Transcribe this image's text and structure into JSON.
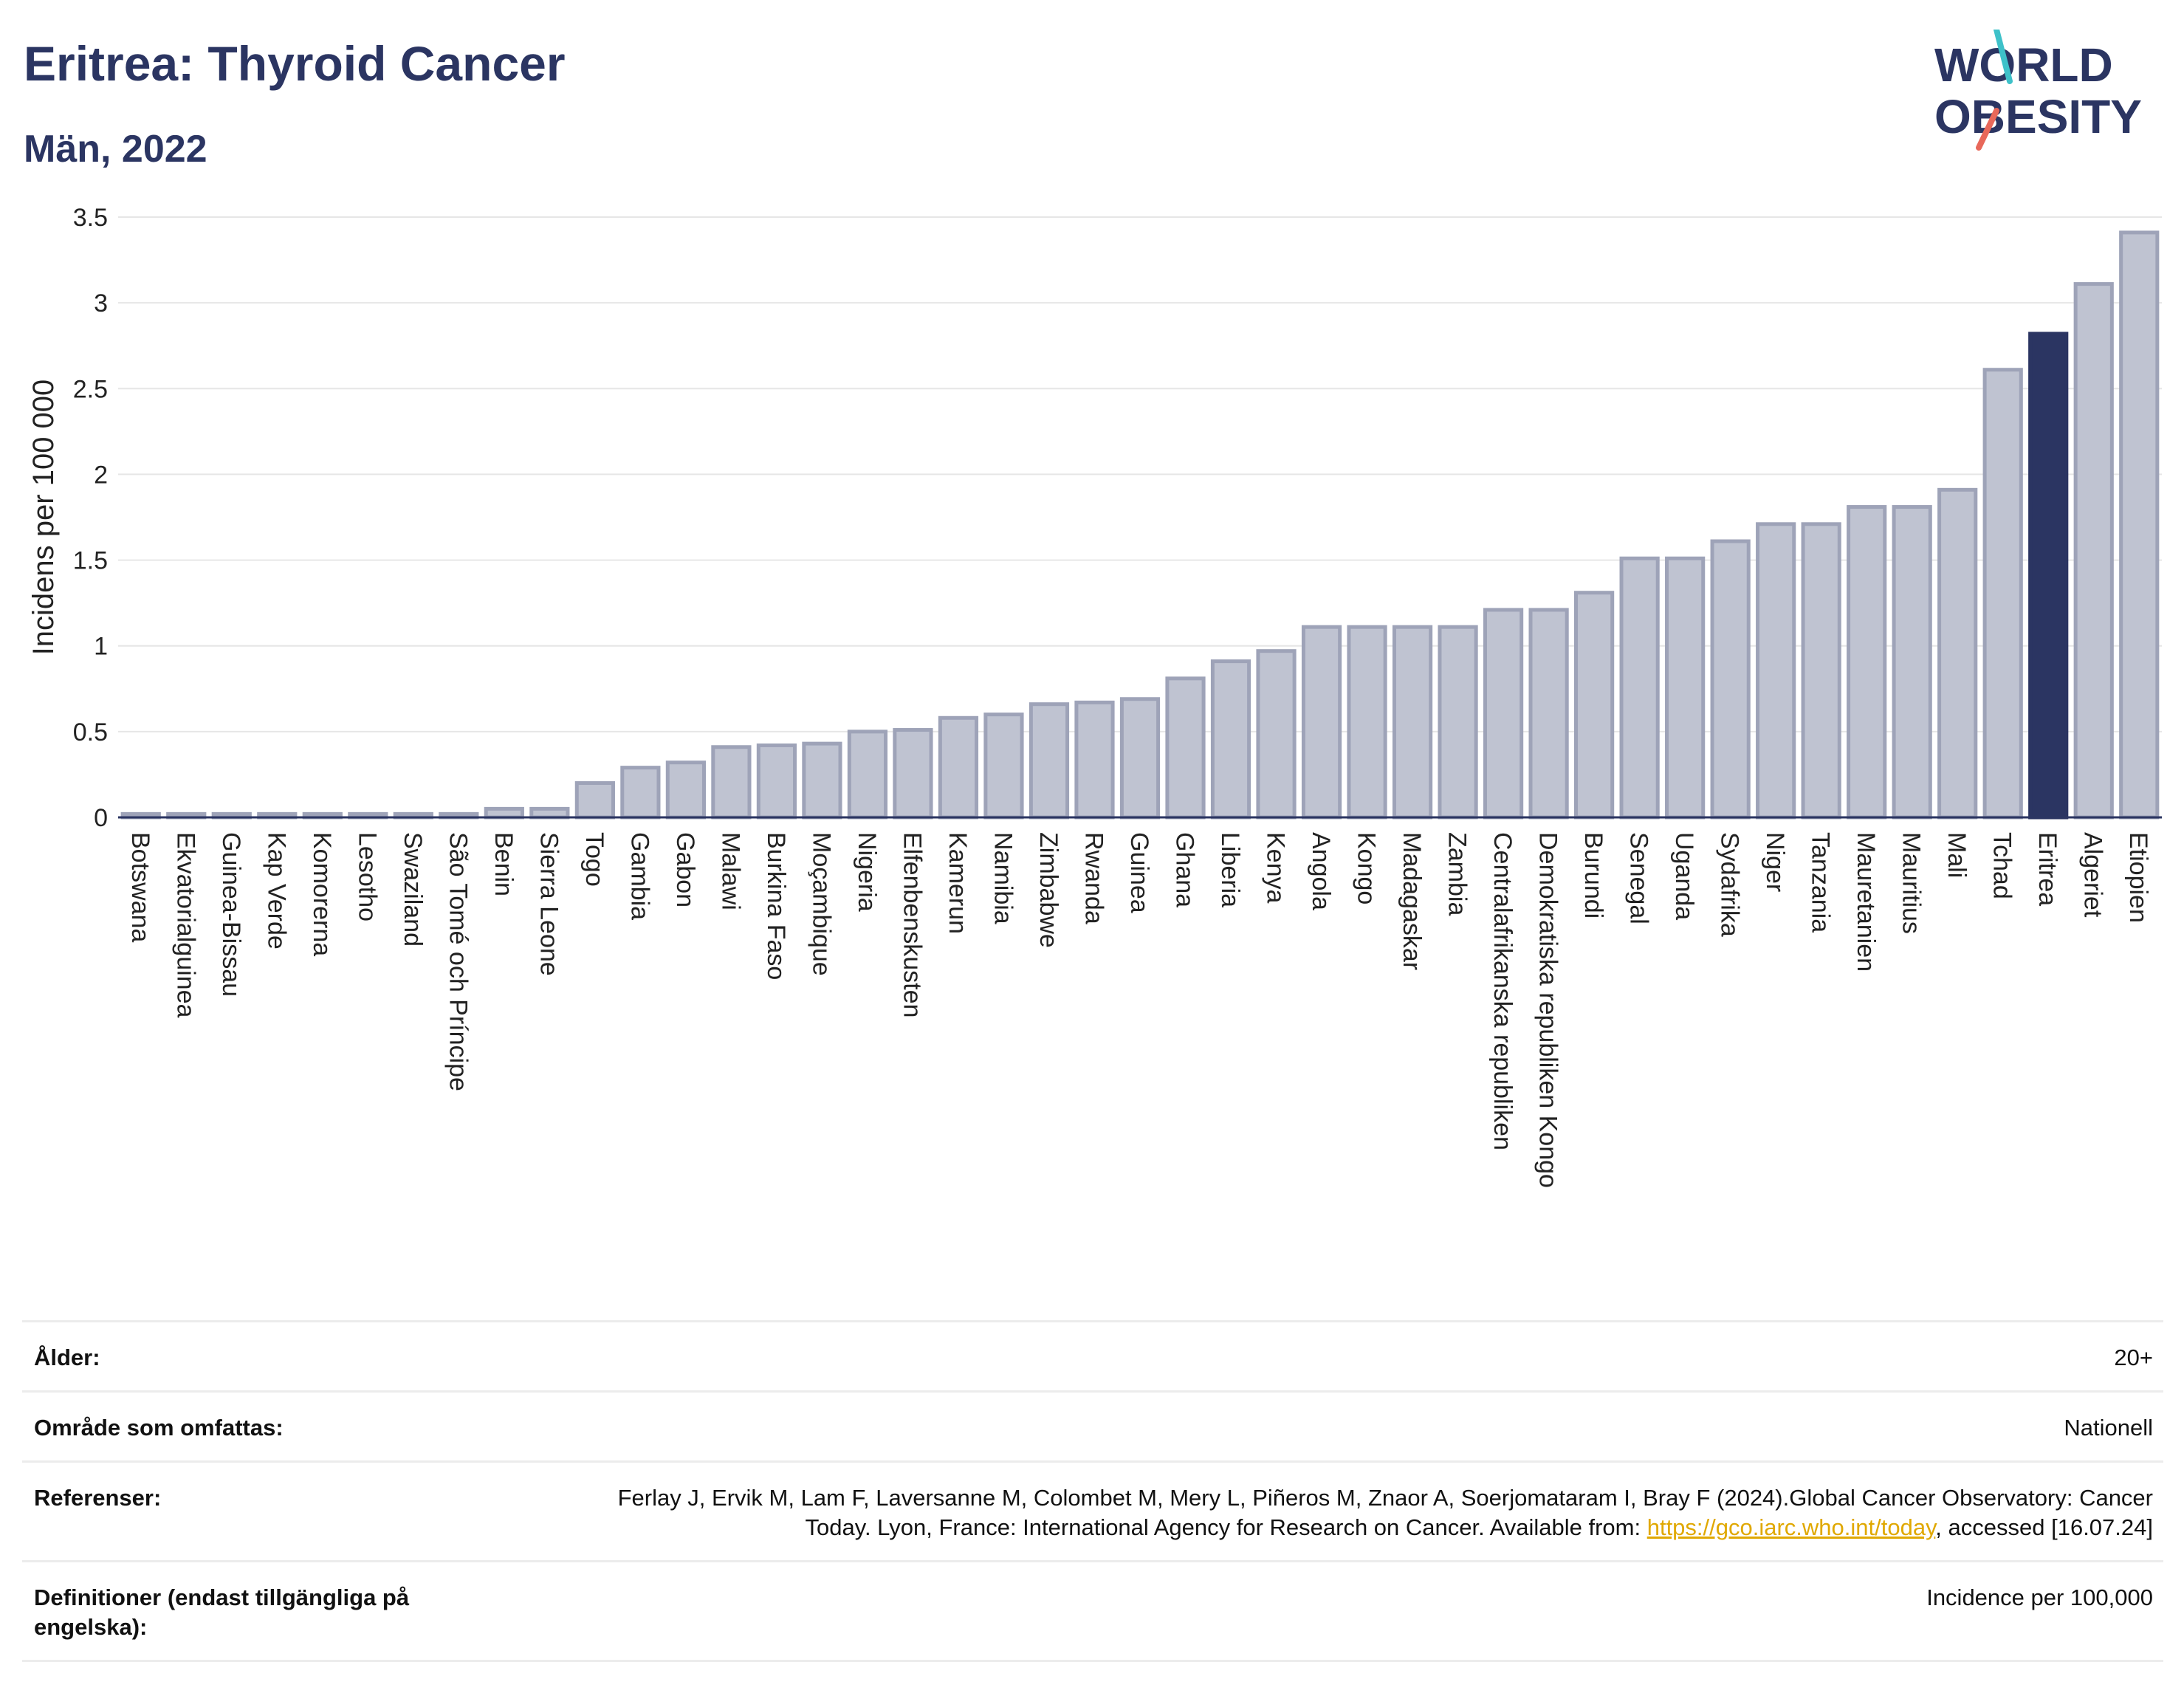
{
  "header": {
    "title": "Eritrea: Thyroid Cancer",
    "subtitle": "Män, 2022"
  },
  "logo": {
    "line1": "WORLD",
    "line2": "OBESITY",
    "slash_color_top": "#3ec1c9",
    "slash_color_bottom": "#e8685a"
  },
  "chart_data": {
    "type": "bar",
    "ylabel": "Incidens per 100 000",
    "ylim": [
      0,
      3.5
    ],
    "yticks": [
      0,
      0.5,
      1,
      1.5,
      2,
      2.5,
      3,
      3.5
    ],
    "ytick_labels": [
      "0",
      "0.5",
      "1",
      "1.5",
      "2",
      "2.5",
      "3",
      "3.5"
    ],
    "grid": true,
    "highlight": "Eritrea",
    "colors": {
      "bar": "#bfc3d1",
      "bar_edge": "#9ea3b8",
      "highlight": "#2b3562"
    },
    "categories": [
      "Botswana",
      "Ekvatorialguinea",
      "Guinea-Bissau",
      "Kap Verde",
      "Komorerna",
      "Lesotho",
      "Swaziland",
      "São Tomé och Príncipe",
      "Benin",
      "Sierra Leone",
      "Togo",
      "Gambia",
      "Gabon",
      "Malawi",
      "Burkina Faso",
      "Moçambique",
      "Nigeria",
      "Elfenbenskusten",
      "Kamerun",
      "Namibia",
      "Zimbabwe",
      "Rwanda",
      "Guinea",
      "Ghana",
      "Liberia",
      "Kenya",
      "Angola",
      "Kongo",
      "Madagaskar",
      "Zambia",
      "Centralafrikanska republiken",
      "Demokratiska republiken Kongo",
      "Burundi",
      "Senegal",
      "Uganda",
      "Sydafrika",
      "Niger",
      "Tanzania",
      "Mauretanien",
      "Mauritius",
      "Mali",
      "Tchad",
      "Eritrea",
      "Algeriet",
      "Etiopien"
    ],
    "values": [
      0.02,
      0.02,
      0.02,
      0.02,
      0.02,
      0.02,
      0.02,
      0.02,
      0.05,
      0.05,
      0.2,
      0.29,
      0.32,
      0.41,
      0.42,
      0.43,
      0.5,
      0.51,
      0.58,
      0.6,
      0.66,
      0.67,
      0.69,
      0.81,
      0.91,
      0.97,
      1.11,
      1.11,
      1.11,
      1.11,
      1.21,
      1.21,
      1.31,
      1.51,
      1.51,
      1.61,
      1.71,
      1.71,
      1.81,
      1.81,
      1.91,
      2.61,
      2.82,
      3.11,
      3.41
    ]
  },
  "meta": {
    "age_label": "Ålder:",
    "age_value": "20+",
    "area_label": "Område som omfattas:",
    "area_value": "Nationell",
    "ref_label": "Referenser:",
    "ref_text_1": "Ferlay J, Ervik M, Lam F, Laversanne M, Colombet M, Mery L, Piñeros M, Znaor A, Soerjomataram I, Bray F (2024).Global Cancer Observatory: Cancer Today. Lyon, France: International Agency for Research on Cancer. Available from: ",
    "ref_link": "https://gco.iarc.who.int/today",
    "ref_text_2": ", accessed [16.07.24]",
    "def_label": "Definitioner (endast tillgängliga på engelska):",
    "def_value": "Incidence per 100,000"
  }
}
